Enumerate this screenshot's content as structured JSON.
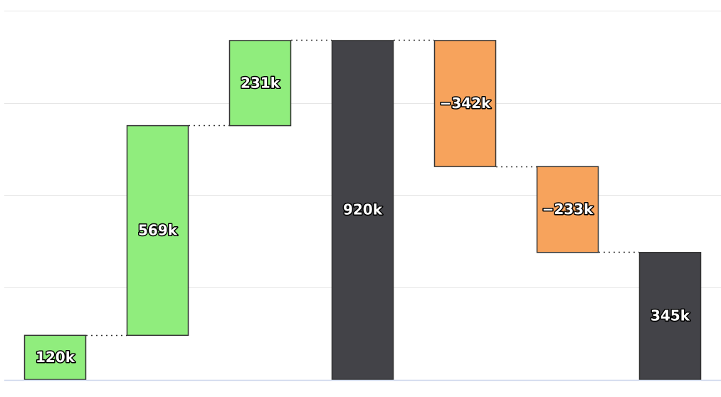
{
  "chart_data": {
    "type": "bar",
    "subtype": "waterfall",
    "title": "",
    "xlabel": "",
    "ylabel": "",
    "ylim": [
      0,
      1000000
    ],
    "grid": true,
    "legend": "none",
    "bars": [
      {
        "kind": "delta",
        "start": 0,
        "end": 120000,
        "label": "120k"
      },
      {
        "kind": "delta",
        "start": 120000,
        "end": 689000,
        "label": "569k"
      },
      {
        "kind": "delta",
        "start": 689000,
        "end": 920000,
        "label": "231k"
      },
      {
        "kind": "total",
        "start": 0,
        "end": 920000,
        "label": "920k"
      },
      {
        "kind": "delta",
        "start": 920000,
        "end": 578000,
        "label": "−342k"
      },
      {
        "kind": "delta",
        "start": 578000,
        "end": 345000,
        "label": "−233k"
      },
      {
        "kind": "total",
        "start": 0,
        "end": 345000,
        "label": "345k"
      }
    ]
  },
  "colors": {
    "increase": "#90ed7d",
    "decrease": "#f7a35c",
    "total": "#434348",
    "bar_border": "#333333",
    "grid": "#e6e6e6",
    "axis": "#ccd6eb",
    "connector": "#333333"
  }
}
